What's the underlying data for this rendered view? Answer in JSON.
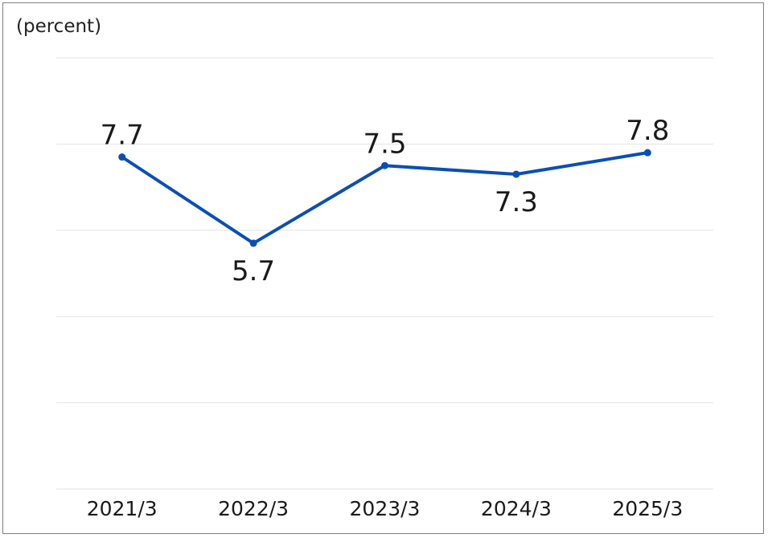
{
  "chart_data": {
    "type": "line",
    "ylabel": "(percent)",
    "categories": [
      "2021/3",
      "2022/3",
      "2023/3",
      "2024/3",
      "2025/3"
    ],
    "values": [
      7.7,
      5.7,
      7.5,
      7.3,
      7.8
    ],
    "value_labels": [
      "7.7",
      "5.7",
      "7.5",
      "7.3",
      "7.8"
    ],
    "label_positions": [
      "above",
      "below",
      "above",
      "below",
      "above"
    ],
    "ylim": [
      0,
      10
    ],
    "y_gridlines": [
      0,
      2,
      4,
      6,
      8,
      10
    ],
    "grid": true,
    "legend": "none",
    "line_color": "#0b4fb3",
    "grid_color": "#e3e3e3"
  }
}
